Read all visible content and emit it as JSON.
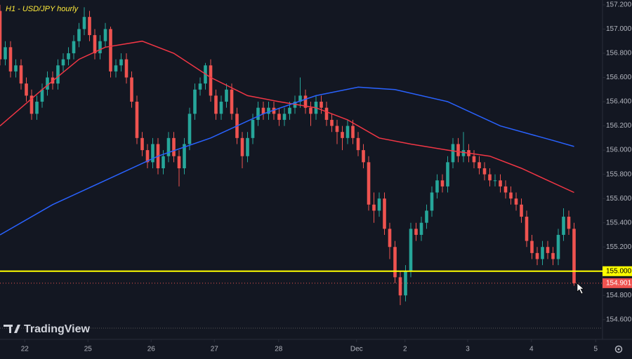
{
  "chart_data": {
    "type": "candlestick",
    "title": "H1 - USD/JPY hourly",
    "brand": "TradingView",
    "x": [
      0,
      1,
      2,
      3,
      4,
      5,
      6,
      7,
      8,
      9,
      10,
      11,
      12,
      13,
      14,
      15,
      16,
      17,
      18,
      19,
      20,
      21,
      22,
      23,
      24,
      25,
      26,
      27,
      28,
      29,
      30,
      31,
      32,
      33,
      34,
      35,
      36,
      37,
      38,
      39,
      40,
      41,
      42,
      43,
      44,
      45,
      46,
      47,
      48,
      49,
      50,
      51,
      52,
      53,
      54,
      55,
      56,
      57,
      58,
      59,
      60,
      61,
      62,
      63,
      64,
      65,
      66,
      67,
      68,
      69,
      70,
      71,
      72,
      73,
      74,
      75,
      76,
      77,
      78,
      79,
      80,
      81,
      82,
      83,
      84,
      85,
      86,
      87,
      88,
      89,
      90,
      91,
      92,
      93,
      94,
      95,
      96,
      97,
      98,
      99,
      100,
      101,
      102,
      103,
      104,
      105,
      106,
      107,
      108,
      109
    ],
    "ohlc": [
      [
        157.15,
        157.2,
        156.7,
        156.75
      ],
      [
        156.75,
        156.9,
        156.7,
        156.85
      ],
      [
        156.85,
        156.9,
        156.6,
        156.65
      ],
      [
        156.65,
        156.75,
        156.6,
        156.7
      ],
      [
        156.7,
        156.75,
        156.5,
        156.55
      ],
      [
        156.55,
        156.6,
        156.4,
        156.45
      ],
      [
        156.45,
        156.5,
        156.25,
        156.3
      ],
      [
        156.3,
        156.45,
        156.25,
        156.4
      ],
      [
        156.4,
        156.55,
        156.35,
        156.5
      ],
      [
        156.5,
        156.65,
        156.45,
        156.6
      ],
      [
        156.6,
        156.65,
        156.5,
        156.55
      ],
      [
        156.55,
        156.75,
        156.5,
        156.7
      ],
      [
        156.7,
        156.8,
        156.65,
        156.75
      ],
      [
        156.75,
        156.85,
        156.7,
        156.8
      ],
      [
        156.8,
        156.95,
        156.75,
        156.9
      ],
      [
        156.9,
        157.05,
        156.85,
        157.0
      ],
      [
        157.0,
        157.18,
        156.95,
        157.1
      ],
      [
        157.1,
        157.15,
        156.9,
        156.95
      ],
      [
        156.95,
        157.0,
        156.75,
        156.8
      ],
      [
        156.8,
        156.95,
        156.75,
        156.9
      ],
      [
        156.9,
        157.05,
        156.85,
        157.0
      ],
      [
        157.0,
        157.02,
        156.6,
        156.65
      ],
      [
        156.65,
        156.75,
        156.6,
        156.7
      ],
      [
        156.7,
        156.8,
        156.65,
        156.75
      ],
      [
        156.75,
        156.8,
        156.55,
        156.6
      ],
      [
        156.6,
        156.65,
        156.35,
        156.4
      ],
      [
        156.4,
        156.45,
        156.05,
        156.1
      ],
      [
        156.1,
        156.15,
        155.95,
        156.0
      ],
      [
        156.0,
        156.05,
        155.85,
        155.9
      ],
      [
        155.9,
        156.1,
        155.85,
        156.05
      ],
      [
        156.05,
        156.1,
        155.8,
        155.85
      ],
      [
        155.85,
        156.0,
        155.8,
        155.95
      ],
      [
        155.95,
        156.15,
        155.9,
        156.1
      ],
      [
        156.1,
        156.15,
        155.9,
        155.95
      ],
      [
        155.95,
        156.0,
        155.7,
        155.85
      ],
      [
        155.85,
        156.1,
        155.8,
        156.05
      ],
      [
        156.05,
        156.35,
        156.0,
        156.3
      ],
      [
        156.3,
        156.55,
        156.25,
        156.5
      ],
      [
        156.5,
        156.6,
        156.45,
        156.55
      ],
      [
        156.55,
        156.72,
        156.5,
        156.7
      ],
      [
        156.7,
        156.75,
        156.4,
        156.45
      ],
      [
        156.45,
        156.5,
        156.25,
        156.3
      ],
      [
        156.3,
        156.45,
        156.25,
        156.4
      ],
      [
        156.4,
        156.55,
        156.35,
        156.5
      ],
      [
        156.5,
        156.55,
        156.25,
        156.3
      ],
      [
        156.3,
        156.35,
        156.05,
        156.1
      ],
      [
        156.1,
        156.15,
        155.85,
        155.95
      ],
      [
        155.95,
        156.15,
        155.9,
        156.1
      ],
      [
        156.1,
        156.3,
        156.05,
        156.25
      ],
      [
        156.25,
        156.4,
        156.2,
        156.35
      ],
      [
        156.35,
        156.4,
        156.25,
        156.3
      ],
      [
        156.3,
        156.4,
        156.25,
        156.35
      ],
      [
        156.35,
        156.4,
        156.25,
        156.3
      ],
      [
        156.3,
        156.35,
        156.2,
        156.25
      ],
      [
        156.25,
        156.35,
        156.2,
        156.3
      ],
      [
        156.3,
        156.4,
        156.25,
        156.35
      ],
      [
        156.35,
        156.45,
        156.3,
        156.4
      ],
      [
        156.4,
        156.6,
        156.35,
        156.45
      ],
      [
        156.45,
        156.5,
        156.3,
        156.35
      ],
      [
        156.35,
        156.4,
        156.2,
        156.3
      ],
      [
        156.3,
        156.45,
        156.25,
        156.4
      ],
      [
        156.4,
        156.45,
        156.3,
        156.35
      ],
      [
        156.35,
        156.4,
        156.2,
        156.25
      ],
      [
        156.25,
        156.3,
        156.15,
        156.2
      ],
      [
        156.2,
        156.25,
        156.05,
        156.15
      ],
      [
        156.15,
        156.2,
        156.0,
        156.1
      ],
      [
        156.1,
        156.25,
        156.05,
        156.2
      ],
      [
        156.2,
        156.25,
        156.05,
        156.1
      ],
      [
        156.1,
        156.15,
        155.95,
        156.0
      ],
      [
        156.0,
        156.05,
        155.85,
        155.9
      ],
      [
        155.9,
        155.95,
        155.5,
        155.55
      ],
      [
        155.55,
        155.65,
        155.4,
        155.5
      ],
      [
        155.5,
        155.65,
        155.45,
        155.6
      ],
      [
        155.6,
        155.65,
        155.3,
        155.35
      ],
      [
        155.35,
        155.4,
        155.1,
        155.2
      ],
      [
        155.2,
        155.25,
        154.9,
        154.95
      ],
      [
        154.95,
        155.0,
        154.72,
        154.8
      ],
      [
        154.8,
        155.05,
        154.75,
        155.0
      ],
      [
        155.0,
        155.4,
        154.95,
        155.35
      ],
      [
        155.35,
        155.4,
        155.25,
        155.3
      ],
      [
        155.3,
        155.45,
        155.25,
        155.4
      ],
      [
        155.4,
        155.55,
        155.35,
        155.5
      ],
      [
        155.5,
        155.7,
        155.45,
        155.65
      ],
      [
        155.65,
        155.8,
        155.6,
        155.75
      ],
      [
        155.75,
        155.8,
        155.65,
        155.7
      ],
      [
        155.7,
        155.95,
        155.65,
        155.9
      ],
      [
        155.9,
        156.1,
        155.85,
        156.05
      ],
      [
        156.05,
        156.1,
        155.9,
        155.95
      ],
      [
        155.95,
        156.15,
        155.9,
        156.0
      ],
      [
        156.0,
        156.05,
        155.9,
        155.95
      ],
      [
        155.95,
        156.0,
        155.85,
        155.9
      ],
      [
        155.9,
        155.95,
        155.8,
        155.85
      ],
      [
        155.85,
        155.9,
        155.75,
        155.8
      ],
      [
        155.8,
        155.85,
        155.7,
        155.75
      ],
      [
        155.75,
        155.8,
        155.7,
        155.75
      ],
      [
        155.75,
        155.8,
        155.65,
        155.7
      ],
      [
        155.7,
        155.75,
        155.6,
        155.65
      ],
      [
        155.65,
        155.7,
        155.55,
        155.6
      ],
      [
        155.6,
        155.65,
        155.5,
        155.55
      ],
      [
        155.55,
        155.6,
        155.4,
        155.45
      ],
      [
        155.45,
        155.5,
        155.2,
        155.25
      ],
      [
        155.25,
        155.3,
        155.1,
        155.15
      ],
      [
        155.15,
        155.2,
        155.05,
        155.1
      ],
      [
        155.1,
        155.25,
        155.05,
        155.2
      ],
      [
        155.2,
        155.25,
        155.1,
        155.15
      ],
      [
        155.15,
        155.2,
        155.05,
        155.1
      ],
      [
        155.1,
        155.35,
        155.05,
        155.3
      ],
      [
        155.3,
        155.52,
        155.25,
        155.45
      ],
      [
        155.45,
        155.5,
        155.3,
        155.35
      ],
      [
        155.35,
        155.4,
        154.88,
        154.901
      ]
    ],
    "up_color": "#26a69a",
    "down_color": "#ef5350",
    "lines": [
      {
        "color": "#f23645",
        "x": [
          0,
          8,
          15,
          20,
          27,
          33,
          40,
          47,
          53,
          60,
          66,
          72,
          78,
          85,
          93,
          99,
          104,
          109
        ],
        "values": [
          156.2,
          156.5,
          156.75,
          156.85,
          156.9,
          156.8,
          156.6,
          156.45,
          156.4,
          156.35,
          156.25,
          156.1,
          156.05,
          156.0,
          155.95,
          155.85,
          155.75,
          155.65
        ]
      },
      {
        "color": "#2962ff",
        "x": [
          0,
          10,
          20,
          30,
          40,
          50,
          60,
          68,
          75,
          85,
          95,
          105,
          109
        ],
        "values": [
          155.3,
          155.55,
          155.75,
          155.95,
          156.1,
          156.3,
          156.45,
          156.52,
          156.5,
          156.4,
          156.2,
          156.08,
          156.03
        ]
      }
    ],
    "level": {
      "value": 155,
      "label": "155.000"
    },
    "level_color": "#ffff00",
    "last_price": 154.901,
    "xlim": [
      0,
      114.4
    ],
    "xticks": [
      {
        "value": 4.7,
        "label": "22"
      },
      {
        "value": 16.7,
        "label": "25"
      },
      {
        "value": 28.7,
        "label": "26"
      },
      {
        "value": 40.7,
        "label": "27"
      },
      {
        "value": 52.9,
        "label": "28"
      },
      {
        "value": 67.7,
        "label": "Dec"
      },
      {
        "value": 76.9,
        "label": "2"
      },
      {
        "value": 88.8,
        "label": "3"
      },
      {
        "value": 100.9,
        "label": "4"
      },
      {
        "value": 113.1,
        "label": "5"
      }
    ],
    "ylim": [
      154.46,
      157.24
    ],
    "yticks": [
      {
        "value": 154.6,
        "label": "154.600"
      },
      {
        "value": 154.8,
        "label": "154.800"
      },
      {
        "value": 155.2,
        "label": "155.200"
      },
      {
        "value": 155.4,
        "label": "155.400"
      },
      {
        "value": 155.6,
        "label": "155.600"
      },
      {
        "value": 155.8,
        "label": "155.800"
      },
      {
        "value": 156,
        "label": "156.000"
      },
      {
        "value": 156.2,
        "label": "156.200"
      },
      {
        "value": 156.4,
        "label": "156.400"
      },
      {
        "value": 156.6,
        "label": "156.600"
      },
      {
        "value": 156.8,
        "label": "156.800"
      },
      {
        "value": 157,
        "label": "157.000"
      },
      {
        "value": 157.2,
        "label": "157.200"
      }
    ]
  }
}
